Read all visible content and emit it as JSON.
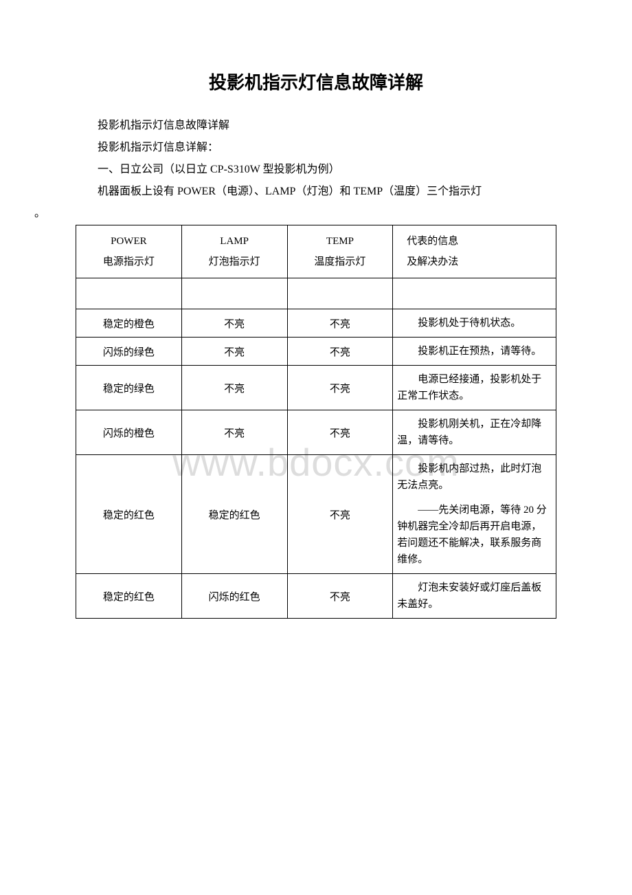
{
  "title": "投影机指示灯信息故障详解",
  "paragraphs": {
    "p1": "投影机指示灯信息故障详解",
    "p2": "投影机指示灯信息详解：",
    "p3": "一、日立公司（以日立 CP-S310W 型投影机为例）",
    "p4": "机器面板上设有 POWER（电源）、LAMP（灯泡）和 TEMP（温度）三个指示灯",
    "p4_tail": "。"
  },
  "watermark": "www.bdocx.com",
  "table": {
    "header": {
      "col1_line1": "POWER",
      "col1_line2": "电源指示灯",
      "col2_line1": "LAMP",
      "col2_line2": "灯泡指示灯",
      "col3_line1": "TEMP",
      "col3_line2": "温度指示灯",
      "col4_line1": "代表的信息",
      "col4_line2": "及解决办法"
    },
    "rows": [
      {
        "power": "",
        "lamp": "",
        "temp": "",
        "info_blocks": []
      },
      {
        "power": "稳定的橙色",
        "lamp": "不亮",
        "temp": "不亮",
        "info_blocks": [
          "投影机处于待机状态。"
        ]
      },
      {
        "power": "闪烁的绿色",
        "lamp": "不亮",
        "temp": "不亮",
        "info_blocks": [
          "投影机正在预热，请等待。"
        ]
      },
      {
        "power": "稳定的绿色",
        "lamp": "不亮",
        "temp": "不亮",
        "info_blocks": [
          "电源已经接通，投影机处于正常工作状态。"
        ]
      },
      {
        "power": "闪烁的橙色",
        "lamp": "不亮",
        "temp": "不亮",
        "info_blocks": [
          "投影机刚关机，正在冷却降温，请等待。"
        ]
      },
      {
        "power": "稳定的红色",
        "lamp": "稳定的红色",
        "temp": "不亮",
        "info_blocks": [
          "投影机内部过热，此时灯泡无法点亮。",
          "——先关闭电源，等待 20 分钟机器完全冷却后再开启电源，若问题还不能解决，联系服务商维修。"
        ]
      },
      {
        "power": "稳定的红色",
        "lamp": "闪烁的红色",
        "temp": "不亮",
        "info_blocks": [
          "灯泡未安装好或灯座后盖板未盖好。"
        ]
      }
    ]
  }
}
